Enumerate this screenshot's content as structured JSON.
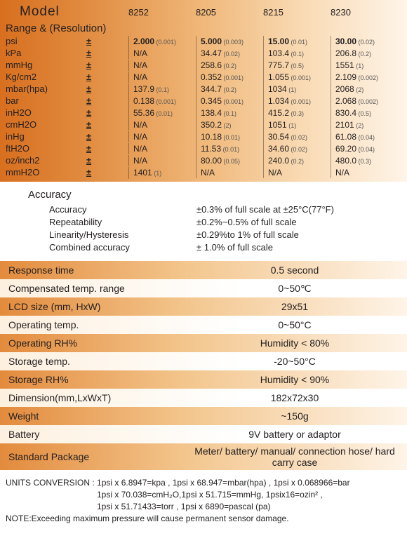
{
  "header": {
    "modelLabel": "Model",
    "models": [
      "8252",
      "8205",
      "8215",
      "8230"
    ],
    "rangeHeader": "Range & (Resolution)"
  },
  "units": [
    {
      "label": "psi",
      "pm": "±",
      "vals": [
        {
          "v": "2.000",
          "r": "(0.001)",
          "b": true
        },
        {
          "v": "5.000",
          "r": "(0.003)",
          "b": true
        },
        {
          "v": "15.00",
          "r": "(0.01)",
          "b": true
        },
        {
          "v": "30.00",
          "r": "(0.02)",
          "b": true
        }
      ]
    },
    {
      "label": "kPa",
      "pm": "±",
      "vals": [
        {
          "v": "N/A",
          "r": ""
        },
        {
          "v": "34.47",
          "r": "(0.02)"
        },
        {
          "v": "103.4",
          "r": "(0.1)"
        },
        {
          "v": "206.8",
          "r": "(0.2)"
        }
      ]
    },
    {
      "label": "mmHg",
      "pm": "±",
      "vals": [
        {
          "v": "N/A",
          "r": ""
        },
        {
          "v": "258.6",
          "r": "(0.2)"
        },
        {
          "v": "775.7",
          "r": "(0.5)"
        },
        {
          "v": "1551",
          "r": "(1)"
        }
      ]
    },
    {
      "label": "Kg/cm2",
      "pm": "±",
      "vals": [
        {
          "v": "N/A",
          "r": ""
        },
        {
          "v": "0.352",
          "r": "(0.001)"
        },
        {
          "v": "1.055",
          "r": "(0.001)"
        },
        {
          "v": "2.109",
          "r": "(0.002)"
        }
      ]
    },
    {
      "label": "mbar(hpa)",
      "pm": "±",
      "vals": [
        {
          "v": "137.9",
          "r": "(0.1)"
        },
        {
          "v": "344.7",
          "r": "(0.2)"
        },
        {
          "v": "1034",
          "r": "(1)"
        },
        {
          "v": "2068",
          "r": "(2)"
        }
      ]
    },
    {
      "label": "bar",
      "pm": "±",
      "vals": [
        {
          "v": "0.138",
          "r": "(0.001)"
        },
        {
          "v": "0.345",
          "r": "(0.001)"
        },
        {
          "v": "1.034",
          "r": "(0.001)"
        },
        {
          "v": "2.068",
          "r": "(0.002)"
        }
      ]
    },
    {
      "label": "inH2O",
      "pm": "±",
      "vals": [
        {
          "v": "55.36",
          "r": "(0.01)"
        },
        {
          "v": "138.4",
          "r": "(0.1)"
        },
        {
          "v": "415.2",
          "r": "(0.3)"
        },
        {
          "v": "830.4",
          "r": "(0.5)"
        }
      ]
    },
    {
      "label": "cmH2O",
      "pm": "±",
      "vals": [
        {
          "v": "N/A",
          "r": ""
        },
        {
          "v": "350.2",
          "r": "(2)"
        },
        {
          "v": "1051",
          "r": "(1)"
        },
        {
          "v": "2101",
          "r": "(2)"
        }
      ]
    },
    {
      "label": "inHg",
      "pm": "±",
      "vals": [
        {
          "v": "N/A",
          "r": ""
        },
        {
          "v": "10.18",
          "r": "(0.01)"
        },
        {
          "v": "30.54",
          "r": "(0.02)"
        },
        {
          "v": "61.08",
          "r": "(0.04)"
        }
      ]
    },
    {
      "label": "ftH2O",
      "pm": "±",
      "vals": [
        {
          "v": "N/A",
          "r": ""
        },
        {
          "v": "11.53",
          "r": "(0.01)"
        },
        {
          "v": "34.60",
          "r": "(0.02)"
        },
        {
          "v": "69.20",
          "r": "(0.04)"
        }
      ]
    },
    {
      "label": "oz/inch2",
      "pm": "±",
      "vals": [
        {
          "v": "N/A",
          "r": ""
        },
        {
          "v": "80.00",
          "r": "(0.05)"
        },
        {
          "v": "240.0",
          "r": "(0.2)"
        },
        {
          "v": "480.0",
          "r": "(0.3)"
        }
      ]
    },
    {
      "label": "mmH2O",
      "pm": "±",
      "vals": [
        {
          "v": "1401",
          "r": "(1)"
        },
        {
          "v": "N/A",
          "r": ""
        },
        {
          "v": "N/A",
          "r": ""
        },
        {
          "v": "N/A",
          "r": ""
        }
      ]
    }
  ],
  "accuracy": {
    "title": "Accuracy",
    "rows": [
      {
        "label": "Accuracy",
        "val": "±0.3% of full scale at ±25°C(77°F)"
      },
      {
        "label": "Repeatability",
        "val": "±0.2%~0.5% of full scale"
      },
      {
        "label": "Linearity/Hysteresis",
        "val": "±0.29%to 1% of full scale"
      },
      {
        "label": "Combined accuracy",
        "val": "± 1.0% of full scale"
      }
    ]
  },
  "specs": [
    {
      "label": "Response time",
      "val": "0.5 second",
      "cls": "orange"
    },
    {
      "label": "Compensated temp. range",
      "val": "0~50℃",
      "cls": "white"
    },
    {
      "label": "LCD size (mm, HxW)",
      "val": "29x51",
      "cls": "orange"
    },
    {
      "label": "Operating temp.",
      "val": "0~50°C",
      "cls": "white"
    },
    {
      "label": "Operating RH%",
      "val": "Humidity < 80%",
      "cls": "orange"
    },
    {
      "label": "Storage temp.",
      "val": "-20~50°C",
      "cls": "white"
    },
    {
      "label": "Storage RH%",
      "val": "Humidity < 90%",
      "cls": "orange"
    },
    {
      "label": "Dimension(mm,LxWxT)",
      "val": "182x72x30",
      "cls": "white"
    },
    {
      "label": "Weight",
      "val": "~150g",
      "cls": "orange"
    },
    {
      "label": "Battery",
      "val": "9V battery or adaptor",
      "cls": "white"
    },
    {
      "label": "Standard Package",
      "val": "Meter/ battery/ manual/ connection hose/ hard carry case",
      "cls": "orange"
    }
  ],
  "footer": {
    "line1": "UNITS CONVERSION : 1psi x 6.8947=kpa , 1psi x 68.947=mbar(hpa) , 1psi x 0.068966=bar",
    "line2": "1psi x 70.038=cmH₂O,1psi x 51.715=mmHg,  1psix16=ozin² ,",
    "line3": "1psi x 51.71433=torr ,  1psi x 6890=pascal (pa)",
    "note": "NOTE:Exceeding maximum pressure will cause permanent sensor damage."
  }
}
